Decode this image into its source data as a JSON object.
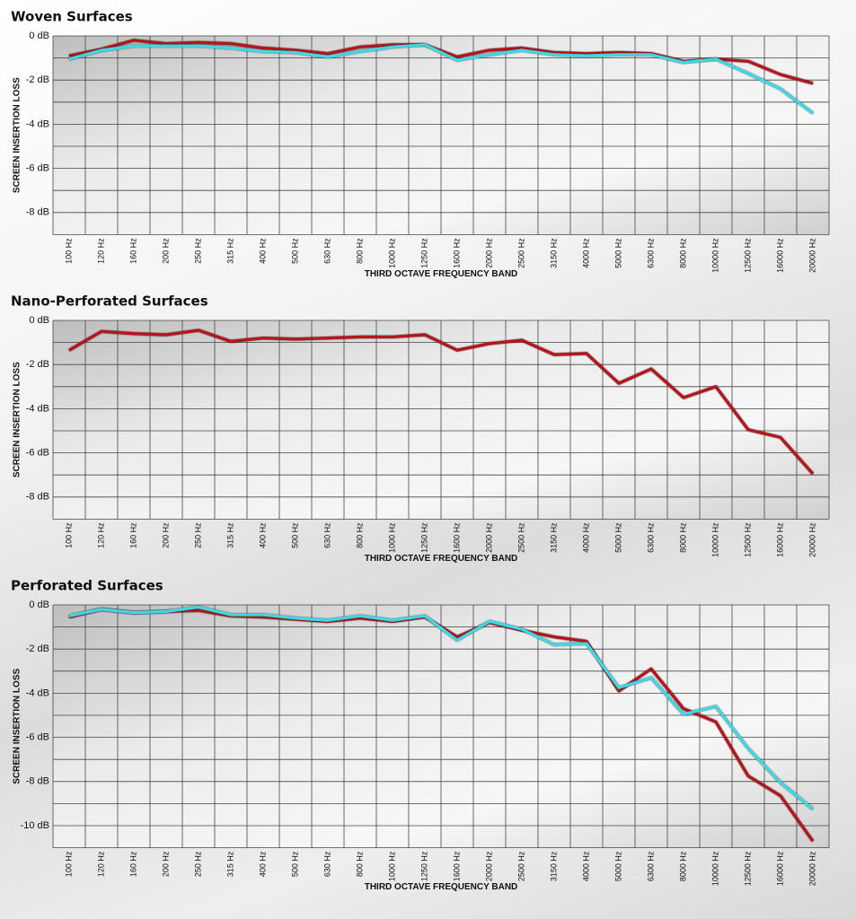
{
  "chart_data": [
    {
      "type": "line",
      "title": "Woven Surfaces",
      "ylabel": "SCREEN INSERTION LOSS",
      "xlabel": "THIRD OCTAVE FREQUENCY BAND",
      "categories": [
        "100 Hz",
        "120 Hz",
        "160 Hz",
        "200 Hz",
        "250 Hz",
        "315 Hz",
        "400 Hz",
        "500 Hz",
        "630 Hz",
        "800 Hz",
        "1000 Hz",
        "1250 Hz",
        "1600 Hz",
        "2000 Hz",
        "2500 Hz",
        "3150 Hz",
        "4000 Hz",
        "5000 Hz",
        "6300 Hz",
        "8000 Hz",
        "10000 Hz",
        "12500 Hz",
        "16000 Hz",
        "20000 Hz"
      ],
      "series": [
        {
          "color": "#b3151f",
          "values": [
            -0.9,
            -0.6,
            -0.2,
            -0.35,
            -0.3,
            -0.35,
            -0.55,
            -0.65,
            -0.8,
            -0.5,
            -0.4,
            -0.4,
            -0.95,
            -0.65,
            -0.55,
            -0.75,
            -0.8,
            -0.75,
            -0.8,
            -1.15,
            -1.05,
            -1.15,
            -1.75,
            -2.15
          ]
        },
        {
          "color": "#3fd6e2",
          "values": [
            -1.05,
            -0.65,
            -0.45,
            -0.45,
            -0.45,
            -0.55,
            -0.7,
            -0.75,
            -0.95,
            -0.7,
            -0.5,
            -0.4,
            -1.1,
            -0.85,
            -0.65,
            -0.85,
            -0.9,
            -0.85,
            -0.85,
            -1.2,
            -1.05,
            -1.7,
            -2.4,
            -3.5
          ]
        }
      ],
      "ylim": [
        -9,
        0
      ],
      "yticks": [
        {
          "value": 0,
          "label": "0 dB"
        },
        {
          "value": -2,
          "label": "-2 dB"
        },
        {
          "value": -4,
          "label": "-4 dB"
        },
        {
          "value": -6,
          "label": "-6 dB"
        },
        {
          "value": -8,
          "label": "-8 dB"
        }
      ],
      "minor_yticks": [
        -1,
        -3,
        -5,
        -7,
        -9
      ],
      "grid": true
    },
    {
      "type": "line",
      "title": "Nano-Perforated Surfaces",
      "ylabel": "SCREEN INSERTION LOSS",
      "xlabel": "THIRD OCTAVE FREQUENCY BAND",
      "categories": [
        "100 Hz",
        "120 Hz",
        "160 Hz",
        "200 Hz",
        "250 Hz",
        "315 Hz",
        "400 Hz",
        "500 Hz",
        "630 Hz",
        "800 Hz",
        "1000 Hz",
        "1250 Hz",
        "1600 Hz",
        "2000 Hz",
        "2500 Hz",
        "3150 Hz",
        "4000 Hz",
        "5000 Hz",
        "6300 Hz",
        "8000 Hz",
        "10000 Hz",
        "12500 Hz",
        "16000 Hz",
        "20000 Hz"
      ],
      "series": [
        {
          "color": "#b3151f",
          "values": [
            -1.35,
            -0.5,
            -0.6,
            -0.65,
            -0.45,
            -0.95,
            -0.8,
            -0.85,
            -0.8,
            -0.75,
            -0.75,
            -0.65,
            -1.35,
            -1.05,
            -0.9,
            -1.55,
            -1.5,
            -2.85,
            -2.2,
            -3.5,
            -3.0,
            -4.95,
            -5.3,
            -6.95
          ]
        }
      ],
      "ylim": [
        -9,
        0
      ],
      "yticks": [
        {
          "value": 0,
          "label": "0 dB"
        },
        {
          "value": -2,
          "label": "-2 dB"
        },
        {
          "value": -4,
          "label": "-4 dB"
        },
        {
          "value": -6,
          "label": "-6 dB"
        },
        {
          "value": -8,
          "label": "-8 dB"
        }
      ],
      "minor_yticks": [
        -1,
        -3,
        -5,
        -7,
        -9
      ],
      "grid": true
    },
    {
      "type": "line",
      "title": "Perforated Surfaces",
      "ylabel": "SCREEN INSERTION LOSS",
      "xlabel": "THIRD OCTAVE FREQUENCY BAND",
      "categories": [
        "100 Hz",
        "120 Hz",
        "160 Hz",
        "200 Hz",
        "250 Hz",
        "315 Hz",
        "400 Hz",
        "500 Hz",
        "630 Hz",
        "800 Hz",
        "1000 Hz",
        "1250 Hz",
        "1600 Hz",
        "2000 Hz",
        "2500 Hz",
        "3150 Hz",
        "4000 Hz",
        "5000 Hz",
        "6300 Hz",
        "8000 Hz",
        "10000 Hz",
        "12500 Hz",
        "16000 Hz",
        "20000 Hz"
      ],
      "series": [
        {
          "color": "#b3151f",
          "values": [
            -0.55,
            -0.2,
            -0.35,
            -0.3,
            -0.25,
            -0.5,
            -0.55,
            -0.65,
            -0.75,
            -0.6,
            -0.75,
            -0.55,
            -1.45,
            -0.8,
            -1.15,
            -1.45,
            -1.65,
            -3.9,
            -2.9,
            -4.7,
            -5.3,
            -7.75,
            -8.65,
            -10.7
          ]
        },
        {
          "color": "#3fd6e2",
          "values": [
            -0.5,
            -0.2,
            -0.35,
            -0.3,
            -0.1,
            -0.45,
            -0.45,
            -0.6,
            -0.7,
            -0.5,
            -0.7,
            -0.5,
            -1.6,
            -0.75,
            -1.1,
            -1.8,
            -1.75,
            -3.75,
            -3.3,
            -4.95,
            -4.6,
            -6.5,
            -8.05,
            -9.25
          ]
        }
      ],
      "ylim": [
        -11,
        0
      ],
      "yticks": [
        {
          "value": 0,
          "label": "0 dB"
        },
        {
          "value": -2,
          "label": "-2 dB"
        },
        {
          "value": -4,
          "label": "-4 dB"
        },
        {
          "value": -6,
          "label": "-6 dB"
        },
        {
          "value": -8,
          "label": "-8 dB"
        },
        {
          "value": -10,
          "label": "-10 dB"
        }
      ],
      "minor_yticks": [
        -1,
        -3,
        -5,
        -7,
        -9,
        -11
      ],
      "grid": true
    }
  ]
}
